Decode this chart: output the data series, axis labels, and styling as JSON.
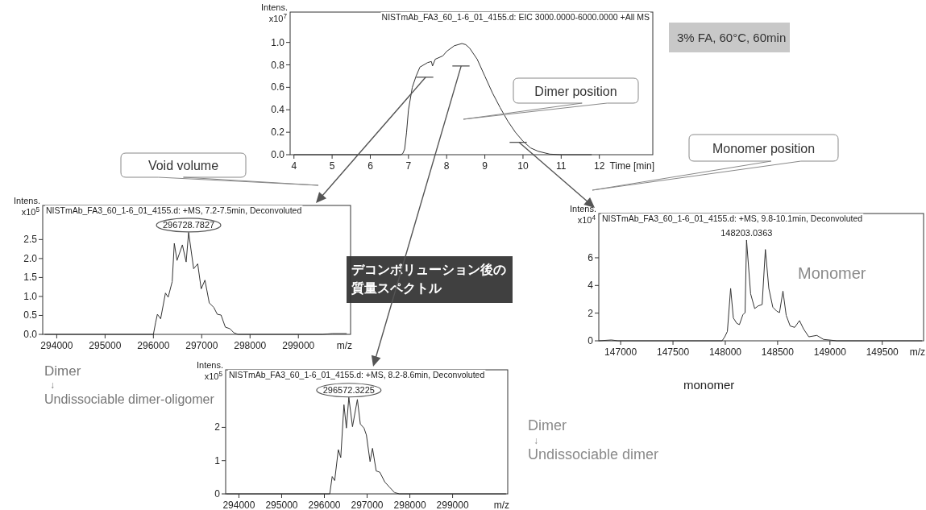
{
  "chart_data": [
    {
      "type": "line",
      "title": "NISTmAb_FA3_60_1-6_01_4155.d: EIC 3000.0000-6000.0000 +All MS",
      "ylabel": "Intens. x10$^{7}$",
      "xlabel": "Time [min]",
      "color": "#333333",
      "x": [
        4,
        6.8,
        6.85,
        6.9,
        6.95,
        7.0,
        7.1,
        7.2,
        7.3,
        7.5,
        7.6,
        7.63,
        7.7,
        7.9,
        8.0,
        8.2,
        8.4,
        8.5,
        8.6,
        8.8,
        9.0,
        9.2,
        9.4,
        9.6,
        9.8,
        10.0,
        10.2,
        10.4,
        10.7,
        11.0,
        11.8
      ],
      "values": [
        0,
        0,
        0.01,
        0.05,
        0.2,
        0.4,
        0.6,
        0.7,
        0.78,
        0.82,
        0.83,
        0.79,
        0.85,
        0.88,
        0.92,
        0.97,
        0.99,
        0.98,
        0.95,
        0.85,
        0.7,
        0.55,
        0.42,
        0.3,
        0.2,
        0.12,
        0.06,
        0.03,
        0.005,
        0,
        0
      ],
      "xlim": [
        3.9,
        13.4
      ],
      "ylim": [
        0,
        1.27
      ],
      "xticks": [
        4,
        5,
        6,
        7,
        8,
        9,
        10,
        11,
        12
      ],
      "yticks": [
        {
          "value": 0,
          "label": "0.0"
        },
        {
          "value": 0.2,
          "label": "0.2"
        },
        {
          "value": 0.4,
          "label": "0.4"
        },
        {
          "value": 0.6,
          "label": "0.6"
        },
        {
          "value": 0.8,
          "label": "0.8"
        },
        {
          "value": 1.0,
          "label": "1.0"
        }
      ],
      "annotations": [
        "3% FA, 60°C, 60min",
        "Dimer position",
        "Void volume",
        "Monomer position",
        "デコンボリューション後の質量スペクトル"
      ]
    },
    {
      "type": "line",
      "title": "NISTmAb_FA3_60_1-6_01_4155.d: +MS, 7.2-7.5min, Deconvoluted",
      "ylabel": "Intens. x10$^{5}$",
      "xlabel": "m/z",
      "color": "#333333",
      "x": [
        293750,
        296000,
        296044,
        296083,
        296150,
        296250,
        296306,
        296389,
        296433,
        296489,
        296600,
        296678,
        296729,
        296833,
        296917,
        296989,
        297067,
        297156,
        297250,
        297322,
        297400,
        297489,
        297583,
        297667,
        297750,
        299500,
        299700,
        300000
      ],
      "values": [
        0,
        0,
        0.3,
        0.53,
        0.41,
        1.09,
        0.98,
        1.39,
        2.4,
        1.95,
        2.36,
        1.91,
        2.69,
        1.73,
        1.86,
        1.2,
        1.43,
        0.83,
        0.71,
        0.53,
        0.51,
        0.19,
        0.15,
        0.04,
        0,
        0,
        0.02,
        0.02
      ],
      "xlim": [
        293710,
        300080
      ],
      "ylim": [
        0,
        3.4
      ],
      "xticks": [
        294000,
        295000,
        296000,
        297000,
        298000,
        299000
      ],
      "yticks": [
        {
          "value": 0,
          "label": "0.0"
        },
        {
          "value": 0.5,
          "label": "0.5"
        },
        {
          "value": 1.0,
          "label": "1.0"
        },
        {
          "value": 1.5,
          "label": "1.5"
        },
        {
          "value": 2.0,
          "label": "2.0"
        },
        {
          "value": 2.5,
          "label": "2.5"
        }
      ],
      "annotations": [
        {
          "text": "296728.7827",
          "x": 296728.7827,
          "y": 2.69
        },
        "Dimer",
        "↓",
        "Undissociable dimer-oligomer"
      ]
    },
    {
      "type": "line",
      "title": "NISTmAb_FA3_60_1-6_01_4155.d: +MS, 9.8-10.1min, Deconvoluted",
      "ylabel": "Intens. x10$^{4}$",
      "xlabel": "m/z",
      "color": "#333333",
      "x": [
        146791,
        146911,
        146975,
        147969,
        147995,
        148020,
        148051,
        148077,
        148110,
        148135,
        148168,
        148189,
        148203,
        148242,
        148281,
        148314,
        148352,
        148383,
        148416,
        148454,
        148492,
        148518,
        148551,
        148582,
        148620,
        148663,
        148709,
        148747,
        148798,
        148875,
        148939,
        149066,
        149880
      ],
      "values": [
        0,
        0.06,
        0,
        0,
        0.29,
        0.68,
        3.79,
        1.65,
        1.26,
        1.17,
        1.88,
        2.04,
        7.28,
        3.4,
        2.33,
        2.52,
        2.62,
        6.6,
        3.79,
        2.43,
        2.14,
        2.04,
        3.59,
        1.84,
        1.07,
        0.97,
        1.46,
        0.87,
        0.29,
        0.39,
        0.1,
        0,
        0
      ],
      "xlim": [
        146791,
        149895
      ],
      "ylim": [
        0,
        9.2
      ],
      "xticks": [
        147000,
        147500,
        148000,
        148500,
        149000,
        149500
      ],
      "yticks": [
        0,
        2,
        4,
        6
      ],
      "annotations": [
        {
          "text": "148203.0363",
          "x": 148203.0363,
          "y": 7.28
        },
        "Monomer",
        "monomer"
      ]
    },
    {
      "type": "line",
      "title": "NISTmAb_FA3_60_1-6_01_4155.d: +MS, 8.2-8.6min, Deconvoluted",
      "ylabel": "Intens. x10$^{5}$",
      "xlabel": "m/z",
      "color": "#333333",
      "x": [
        293700,
        296126,
        296183,
        296241,
        296326,
        296383,
        296458,
        296515,
        296572,
        296658,
        296772,
        296841,
        296926,
        296983,
        297069,
        297126,
        297212,
        297298,
        297412,
        297526,
        297641,
        297755,
        300250
      ],
      "values": [
        0,
        0,
        0.52,
        0.4,
        1.33,
        1.09,
        2.68,
        1.98,
        2.9,
        2.02,
        2.84,
        2.1,
        1.98,
        1.77,
        0.97,
        1.37,
        0.69,
        0.65,
        0.36,
        0.2,
        0.04,
        0,
        0
      ],
      "xlim": [
        293690,
        300290
      ],
      "ylim": [
        0,
        3.73
      ],
      "xticks": [
        294000,
        295000,
        296000,
        297000,
        298000,
        299000
      ],
      "yticks": [
        0,
        1,
        2
      ],
      "annotations": [
        {
          "text": "296572.3225",
          "x": 296572.3225,
          "y": 2.9
        },
        "Dimer",
        "↓",
        "Undissociable dimer"
      ]
    }
  ]
}
